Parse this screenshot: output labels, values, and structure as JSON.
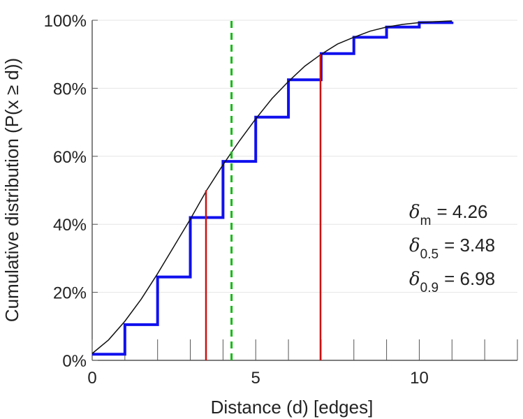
{
  "chart_data": {
    "type": "line",
    "xlabel": "Distance (d) [edges]",
    "ylabel": "Cumulative distribution (P(x ≥ d))",
    "xlim": [
      0,
      13
    ],
    "ylim": [
      0,
      100
    ],
    "x_ticks": [
      0,
      1,
      2,
      3,
      4,
      5,
      6,
      7,
      8,
      9,
      10,
      11,
      12,
      13
    ],
    "x_tick_labels": [
      {
        "value": 0,
        "label": "0"
      },
      {
        "value": 5,
        "label": "5"
      },
      {
        "value": 10,
        "label": "10"
      }
    ],
    "y_ticks": [
      {
        "value": 0,
        "label": "0%"
      },
      {
        "value": 20,
        "label": "20%"
      },
      {
        "value": 40,
        "label": "40%"
      },
      {
        "value": 60,
        "label": "60%"
      },
      {
        "value": 80,
        "label": "80%"
      },
      {
        "value": 100,
        "label": "100%"
      }
    ],
    "grid": "horizontal",
    "series": [
      {
        "name": "empirical-cdf",
        "style": "step",
        "color": "#1010ee",
        "x": [
          0,
          1,
          2,
          3,
          4,
          5,
          6,
          7,
          8,
          9,
          10,
          11
        ],
        "values": [
          1.8,
          10.5,
          24.5,
          42,
          58.5,
          71.5,
          82.5,
          90.2,
          95,
          98,
          99.3,
          99.6
        ]
      },
      {
        "name": "fitted-curve",
        "style": "line",
        "color": "#111111",
        "x": [
          0,
          0.5,
          1,
          1.5,
          2,
          2.5,
          3,
          3.5,
          4,
          4.5,
          5,
          5.5,
          6,
          6.5,
          7,
          7.5,
          8,
          8.5,
          9,
          9.5,
          10,
          10.5,
          11
        ],
        "values": [
          2,
          6,
          11.5,
          18,
          25.5,
          33.5,
          41.5,
          50,
          57.5,
          64.5,
          71,
          77,
          82,
          86.5,
          90,
          93,
          95,
          96.8,
          98,
          98.8,
          99.3,
          99.6,
          99.8
        ]
      }
    ],
    "markers": [
      {
        "name": "delta-0.5",
        "x": 3.48,
        "y_top": 50,
        "color": "#cc1111",
        "style": "solid"
      },
      {
        "name": "delta-0.9",
        "x": 6.98,
        "y_top": 90,
        "color": "#cc1111",
        "style": "solid"
      },
      {
        "name": "delta-m",
        "x": 4.26,
        "y_top": 100,
        "color": "#11bb11",
        "style": "dashed"
      }
    ],
    "annotations": [
      {
        "symbol": "δ",
        "sub": "m",
        "text": "= 4.26"
      },
      {
        "symbol": "δ",
        "sub": "0.5",
        "text": "= 3.48"
      },
      {
        "symbol": "δ",
        "sub": "0.9",
        "text": "= 6.98"
      }
    ]
  }
}
